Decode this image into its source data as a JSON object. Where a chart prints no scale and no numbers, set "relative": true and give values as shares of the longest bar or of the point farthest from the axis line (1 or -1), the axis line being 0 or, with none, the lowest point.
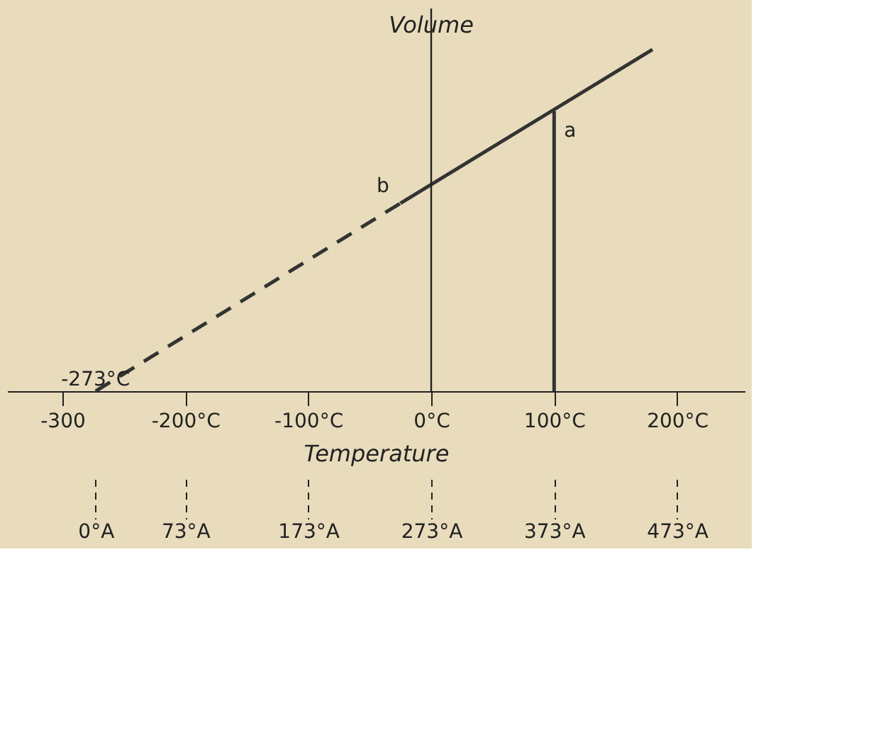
{
  "chart_data": {
    "type": "line",
    "relative": true,
    "xlabel": "Temperature",
    "ylabel": "Volume",
    "xlim": [
      -345,
      255
    ],
    "xticks": [
      -300,
      {
        "value": -200,
        "label": "-200°C"
      },
      {
        "value": -100,
        "label": "-100°C"
      },
      {
        "value": 0,
        "label": "0°C"
      },
      {
        "value": 100,
        "label": "100°C"
      },
      {
        "value": 200,
        "label": "200°C"
      }
    ],
    "x2lim": [
      -72,
      528
    ],
    "x2ticks": [
      {
        "value": 0,
        "label": "0°A"
      },
      {
        "value": 73,
        "label": "73°A"
      },
      {
        "value": 173,
        "label": "173°A"
      },
      {
        "value": 273,
        "label": "273°A"
      },
      {
        "value": 373,
        "label": "373°A"
      },
      {
        "value": 473,
        "label": "473°A"
      }
    ],
    "series": [
      {
        "x": [
          -273,
          -25
        ],
        "values": [
          0,
          0.55
        ],
        "color": "#333333",
        "line_style": "dashed"
      },
      {
        "x": [
          -25,
          180
        ],
        "values": [
          0.55,
          1.0
        ],
        "color": "#333333",
        "line_style": "solid"
      },
      {
        "x": [
          100,
          100
        ],
        "values": [
          0,
          0.82
        ],
        "color": "#333333",
        "line_style": "solid"
      }
    ],
    "annotations": [
      {
        "text": "a",
        "x": 100,
        "y": 0.82
      },
      {
        "text": "b",
        "x": -25,
        "y": 0.55
      },
      {
        "text": "-273°C",
        "x": -273,
        "y": 0
      }
    ],
    "ref_lines": [
      {
        "axis": "x",
        "value": 0
      }
    ],
    "grid": false,
    "marker": "none"
  }
}
